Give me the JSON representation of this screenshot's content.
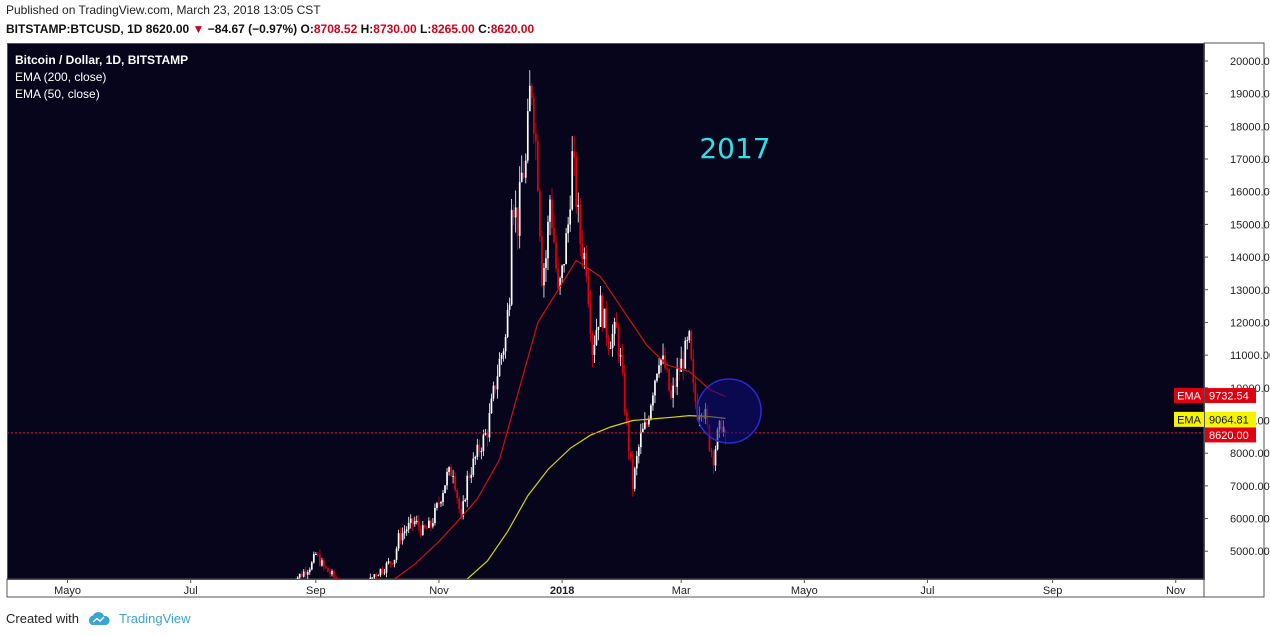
{
  "header": {
    "published": "Published on TradingView.com, March 23, 2018 13:05 CST",
    "symbol": "BITSTAMP:BTCUSD, 1D",
    "last": "8620.00",
    "change": "−84.67 (−0.97%)",
    "o_label": "O:",
    "o_value": "8708.52",
    "h_label": "H:",
    "h_value": "8730.00",
    "l_label": "L:",
    "l_value": "8265.00",
    "c_label": "C:",
    "c_value": "8620.00"
  },
  "footer": {
    "created_with": "Created with",
    "brand": "TradingView"
  },
  "colors": {
    "background": "#07051c",
    "up": "#ffffff",
    "down": "#e0000f",
    "ema200": "#d4d400",
    "ema50": "#d01010",
    "annotation": "#2de0ea",
    "circle": "#1a1aa0"
  },
  "chart_data": {
    "type": "candlestick",
    "title": "Bitcoin / Dollar, 1D, BITSTAMP",
    "legend": [
      "EMA (200, close)",
      "EMA (50, close)"
    ],
    "annotation": "2017",
    "x_tick_labels": [
      "Mayo",
      "Jul",
      "Sep",
      "Nov",
      "2018",
      "Mar",
      "Mayo",
      "Jul",
      "Sep",
      "Nov"
    ],
    "y_ticks": [
      "5000.00",
      "6000.00",
      "7000.00",
      "8000.00",
      "9000.00",
      "10000.00",
      "11000.00",
      "12000.00",
      "13000.00",
      "14000.00",
      "15000.00",
      "16000.00",
      "17000.00",
      "18000.00",
      "19000.00",
      "20000.00"
    ],
    "ylim": [
      4150,
      20550
    ],
    "price_tags": [
      {
        "label": "EMA",
        "value": "9732.54"
      },
      {
        "label": "EMA",
        "value": "9064.81"
      },
      {
        "label": "",
        "value": "8620.00"
      }
    ],
    "last_price": 8620,
    "close_path": [
      [
        "2017-08-20",
        4100
      ],
      [
        "2017-08-25",
        4300
      ],
      [
        "2017-08-30",
        4600
      ],
      [
        "2017-09-01",
        4900
      ],
      [
        "2017-09-05",
        4500
      ],
      [
        "2017-09-10",
        4200
      ],
      [
        "2017-09-15",
        3700
      ],
      [
        "2017-09-20",
        3900
      ],
      [
        "2017-09-25",
        3800
      ],
      [
        "2017-09-30",
        4300
      ],
      [
        "2017-10-05",
        4500
      ],
      [
        "2017-10-10",
        4800
      ],
      [
        "2017-10-12",
        5400
      ],
      [
        "2017-10-16",
        5700
      ],
      [
        "2017-10-20",
        5900
      ],
      [
        "2017-10-24",
        5600
      ],
      [
        "2017-10-28",
        5800
      ],
      [
        "2017-11-01",
        6500
      ],
      [
        "2017-11-05",
        7300
      ],
      [
        "2017-11-08",
        7500
      ],
      [
        "2017-11-12",
        5900
      ],
      [
        "2017-11-15",
        7200
      ],
      [
        "2017-11-20",
        8000
      ],
      [
        "2017-11-25",
        8700
      ],
      [
        "2017-11-28",
        9800
      ],
      [
        "2017-12-01",
        10800
      ],
      [
        "2017-12-04",
        11500
      ],
      [
        "2017-12-06",
        13000
      ],
      [
        "2017-12-07",
        16000
      ],
      [
        "2017-12-10",
        15000
      ],
      [
        "2017-12-12",
        16500
      ],
      [
        "2017-12-14",
        16800
      ],
      [
        "2017-12-16",
        19000
      ],
      [
        "2017-12-17",
        19200
      ],
      [
        "2017-12-19",
        17500
      ],
      [
        "2017-12-20",
        16500
      ],
      [
        "2017-12-22",
        13500
      ],
      [
        "2017-12-24",
        14000
      ],
      [
        "2017-12-26",
        15800
      ],
      [
        "2017-12-28",
        14500
      ],
      [
        "2017-12-30",
        12800
      ],
      [
        "2018-01-01",
        13500
      ],
      [
        "2018-01-04",
        15000
      ],
      [
        "2018-01-06",
        17000
      ],
      [
        "2018-01-07",
        16500
      ],
      [
        "2018-01-10",
        14500
      ],
      [
        "2018-01-13",
        13800
      ],
      [
        "2018-01-16",
        11200
      ],
      [
        "2018-01-20",
        12500
      ],
      [
        "2018-01-24",
        11500
      ],
      [
        "2018-01-28",
        11700
      ],
      [
        "2018-01-30",
        10800
      ],
      [
        "2018-02-02",
        8800
      ],
      [
        "2018-02-05",
        7000
      ],
      [
        "2018-02-07",
        7800
      ],
      [
        "2018-02-09",
        8500
      ],
      [
        "2018-02-12",
        8900
      ],
      [
        "2018-02-15",
        10000
      ],
      [
        "2018-02-18",
        11000
      ],
      [
        "2018-02-21",
        10600
      ],
      [
        "2018-02-24",
        9600
      ],
      [
        "2018-02-27",
        10400
      ],
      [
        "2018-03-02",
        10900
      ],
      [
        "2018-03-05",
        11400
      ],
      [
        "2018-03-07",
        9900
      ],
      [
        "2018-03-09",
        9300
      ],
      [
        "2018-03-11",
        9500
      ],
      [
        "2018-03-13",
        9100
      ],
      [
        "2018-03-15",
        8300
      ],
      [
        "2018-03-17",
        7900
      ],
      [
        "2018-03-19",
        8500
      ],
      [
        "2018-03-21",
        8900
      ],
      [
        "2018-03-23",
        8620
      ]
    ],
    "ema50_path": [
      [
        "2017-10-10",
        4150
      ],
      [
        "2017-10-20",
        4600
      ],
      [
        "2017-11-01",
        5300
      ],
      [
        "2017-11-10",
        5900
      ],
      [
        "2017-11-20",
        6600
      ],
      [
        "2017-12-01",
        7800
      ],
      [
        "2017-12-10",
        9800
      ],
      [
        "2017-12-20",
        12000
      ],
      [
        "2017-12-30",
        13000
      ],
      [
        "2018-01-08",
        13900
      ],
      [
        "2018-01-20",
        13400
      ],
      [
        "2018-02-01",
        12300
      ],
      [
        "2018-02-12",
        11300
      ],
      [
        "2018-02-22",
        10700
      ],
      [
        "2018-03-05",
        10500
      ],
      [
        "2018-03-15",
        9950
      ],
      [
        "2018-03-23",
        9732
      ]
    ],
    "ema200_path": [
      [
        "2017-11-15",
        4150
      ],
      [
        "2017-11-25",
        4700
      ],
      [
        "2017-12-05",
        5600
      ],
      [
        "2017-12-15",
        6700
      ],
      [
        "2017-12-25",
        7500
      ],
      [
        "2018-01-05",
        8150
      ],
      [
        "2018-01-15",
        8550
      ],
      [
        "2018-01-25",
        8800
      ],
      [
        "2018-02-05",
        9000
      ],
      [
        "2018-02-15",
        9050
      ],
      [
        "2018-02-25",
        9100
      ],
      [
        "2018-03-05",
        9150
      ],
      [
        "2018-03-15",
        9120
      ],
      [
        "2018-03-23",
        9064
      ]
    ]
  }
}
